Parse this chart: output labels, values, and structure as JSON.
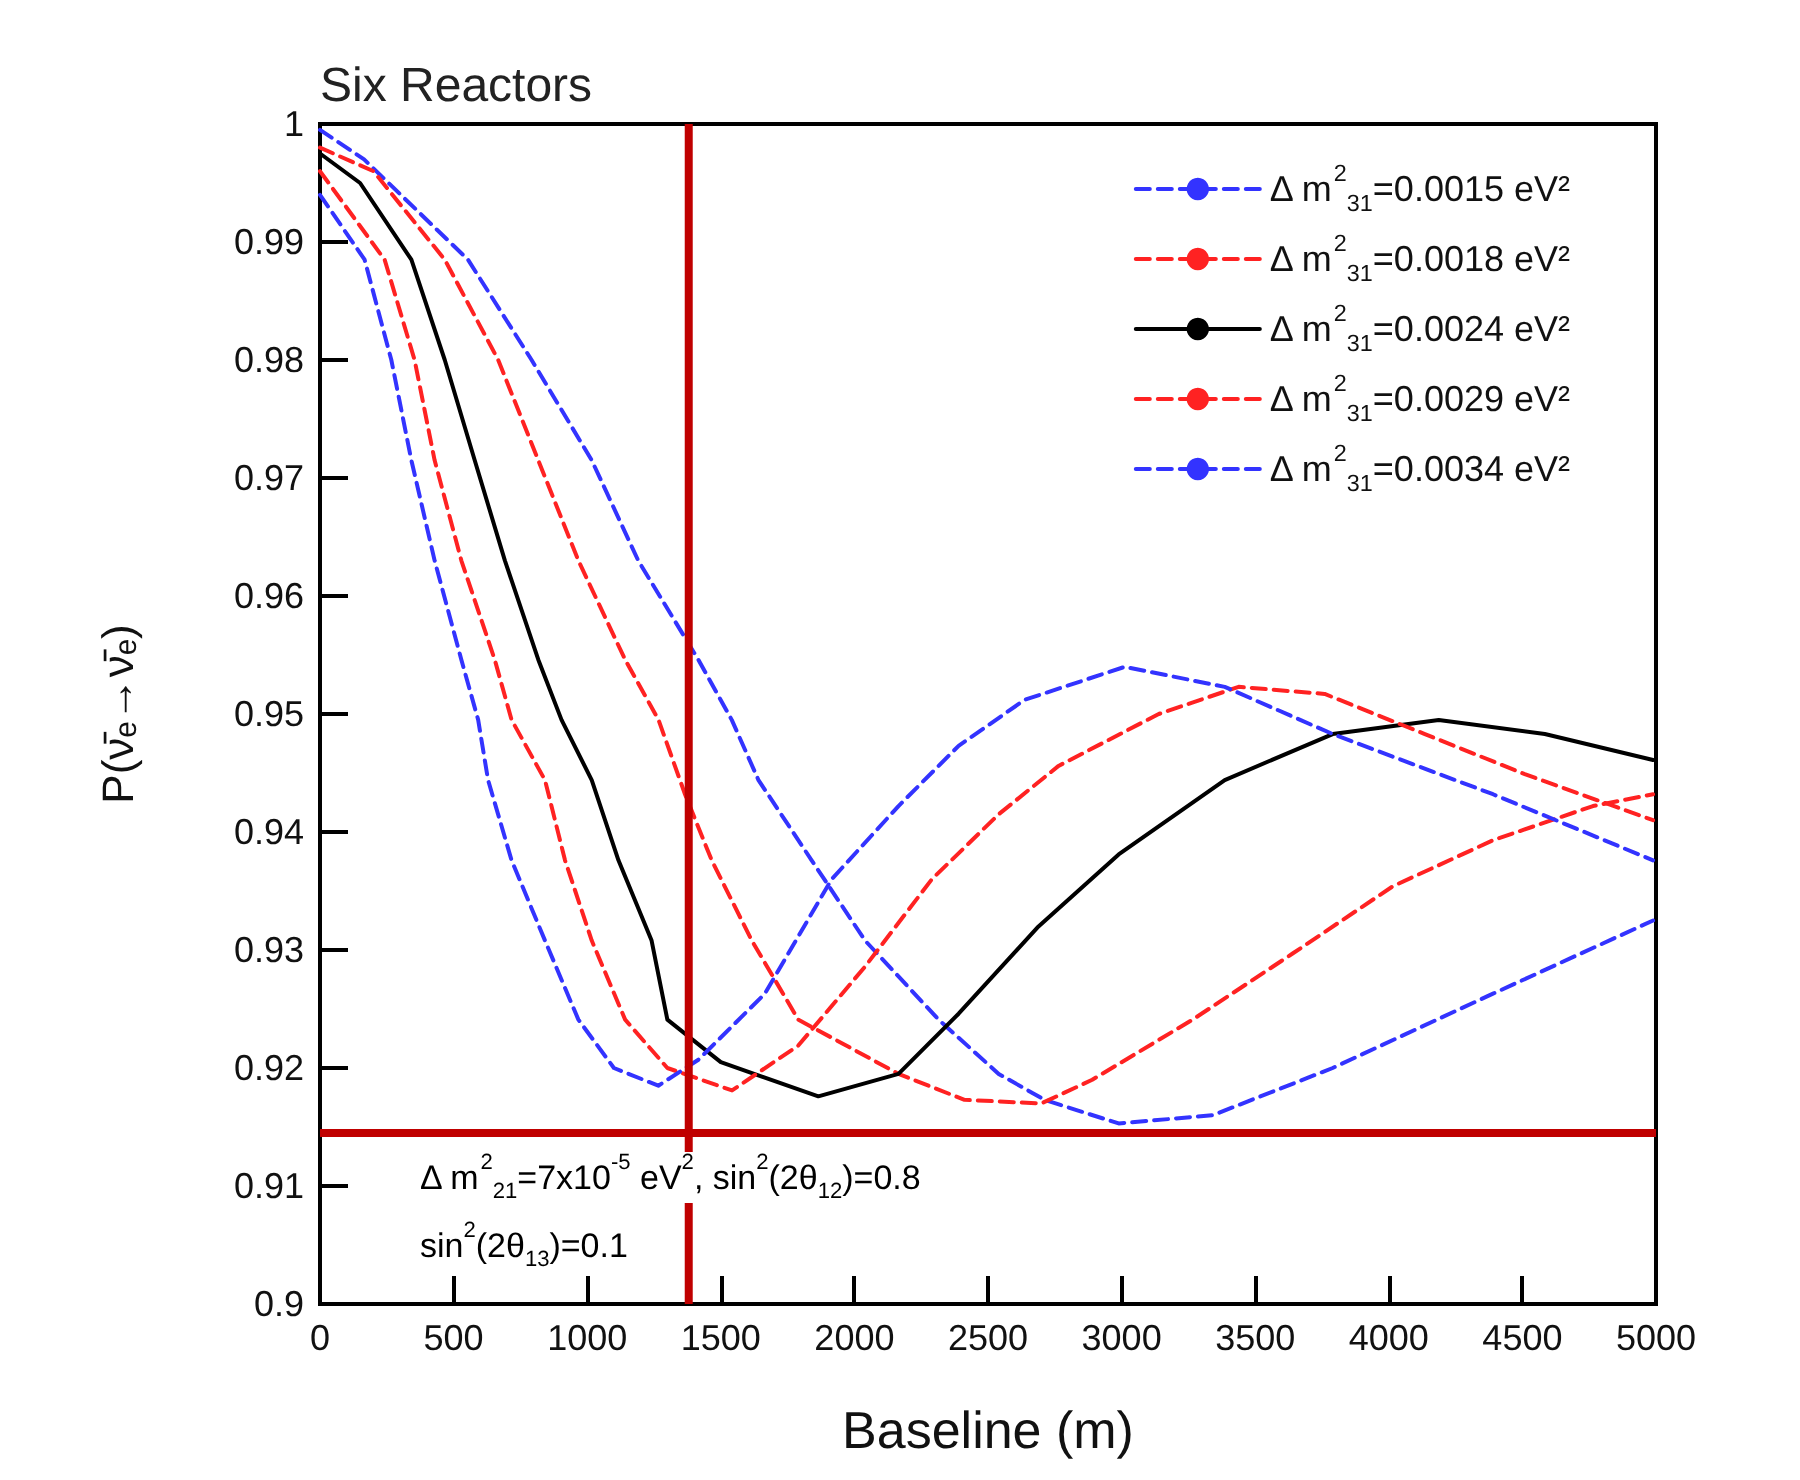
{
  "chart_data": {
    "type": "line",
    "title": "Six Reactors",
    "xlabel": "Baseline (m)",
    "ylabel": "P(ν̄ₑ→ν̄ₑ)",
    "xlim": [
      0,
      5000
    ],
    "xticks": [
      0,
      500,
      1000,
      1500,
      2000,
      2500,
      3000,
      3500,
      4000,
      4500,
      5000
    ],
    "ylim": [
      0.9,
      1
    ],
    "yticks": [
      0.9,
      0.91,
      0.92,
      0.93,
      0.94,
      0.95,
      0.96,
      0.97,
      0.98,
      0.99,
      1
    ],
    "grid": false,
    "legend": "top right",
    "marker": "none",
    "series": [
      {
        "name": "Δ m$^{2}$$_{31}$=0.0015 eV²",
        "color": "#3333ff",
        "line_style": "dashed",
        "x": [
          0,
          165,
          554,
          792,
          1017,
          1191,
          1416,
          1541,
          1641,
          1840,
          2040,
          2315,
          2540,
          2712,
          2989,
          3341,
          3790,
          4390,
          4989
        ],
        "values": [
          0.9995,
          0.997,
          0.9885,
          0.98,
          0.9715,
          0.963,
          0.9546,
          0.9495,
          0.9444,
          0.9376,
          0.9308,
          0.9241,
          0.9195,
          0.9173,
          0.9153,
          0.916,
          0.92,
          0.9263,
          0.9325
        ]
      },
      {
        "name": "Δ m$^{2}$$_{31}$=0.0018 eV²",
        "color": "#ff2222",
        "line_style": "dashed",
        "x": [
          0,
          200,
          467,
          667,
          817,
          967,
          1142,
          1267,
          1366,
          1466,
          1616,
          1790,
          2165,
          2412,
          2700,
          2890,
          3266,
          3640,
          4015,
          4390,
          4764,
          4989
        ],
        "values": [
          0.998,
          0.996,
          0.9885,
          0.98,
          0.9715,
          0.963,
          0.9546,
          0.9495,
          0.9432,
          0.9376,
          0.9308,
          0.9241,
          0.9195,
          0.9173,
          0.917,
          0.919,
          0.9241,
          0.9297,
          0.9354,
          0.9393,
          0.9422,
          0.9432
        ]
      },
      {
        "name": "Δ m$^{2}$$_{31}$=0.0024 eV²",
        "color": "#000000",
        "line_style": "solid",
        "x": [
          0,
          150,
          342,
          467,
          579,
          692,
          817,
          904,
          1017,
          1117,
          1241,
          1300,
          1500,
          1865,
          2165,
          2390,
          2689,
          2989,
          3386,
          3790,
          4187,
          4584,
          4989
        ],
        "values": [
          0.9975,
          0.995,
          0.9885,
          0.98,
          0.9715,
          0.963,
          0.9546,
          0.9495,
          0.9444,
          0.9376,
          0.9308,
          0.9241,
          0.9205,
          0.9176,
          0.9195,
          0.9246,
          0.932,
          0.9381,
          0.9444,
          0.9483,
          0.9495,
          0.9483,
          0.9461
        ]
      },
      {
        "name": "Δ m$^{2}$$_{31}$=0.0029 eV²",
        "color": "#ff2222",
        "line_style": "dashed",
        "x": [
          0,
          242,
          354,
          429,
          529,
          654,
          717,
          842,
          917,
          1017,
          1142,
          1300,
          1542,
          1790,
          2040,
          2290,
          2540,
          2764,
          3139,
          3438,
          3760,
          4135,
          4509,
          4989
        ],
        "values": [
          0.996,
          0.9885,
          0.98,
          0.9715,
          0.963,
          0.9546,
          0.9495,
          0.9444,
          0.9376,
          0.9308,
          0.9241,
          0.92,
          0.9181,
          0.9219,
          0.9286,
          0.936,
          0.9415,
          0.9456,
          0.95,
          0.9523,
          0.9517,
          0.9483,
          0.9449,
          0.941
        ]
      },
      {
        "name": "Δ m$^{2}$$_{31}$=0.0034 eV²",
        "color": "#3333ff",
        "line_style": "dashed",
        "x": [
          0,
          167,
          267,
          342,
          429,
          529,
          592,
          629,
          717,
          842,
          967,
          1100,
          1266,
          1416,
          1665,
          1915,
          2165,
          2390,
          2637,
          3012,
          3386,
          3790,
          4390,
          4989
        ],
        "values": [
          0.994,
          0.9885,
          0.98,
          0.9715,
          0.963,
          0.9546,
          0.9495,
          0.9444,
          0.9376,
          0.9308,
          0.9241,
          0.92,
          0.9185,
          0.9207,
          0.9263,
          0.936,
          0.9422,
          0.9473,
          0.9512,
          0.954,
          0.9523,
          0.9483,
          0.9432,
          0.9376
        ]
      }
    ],
    "ref_lines": [
      {
        "axis": "x",
        "value": 1380,
        "color": "#c00000",
        "line_style": "solid"
      },
      {
        "axis": "y",
        "value": 0.9145,
        "color": "#c00000",
        "line_style": "solid"
      }
    ],
    "annotations": [
      "Δ m$^{2}$$_{21}$=7x10$^{-5}$ eV$^{2}$, sin$^{2}$(2θ$_{12}$)=0.8",
      "sin$^{2}$(2θ$_{13}$)=0.1"
    ]
  }
}
